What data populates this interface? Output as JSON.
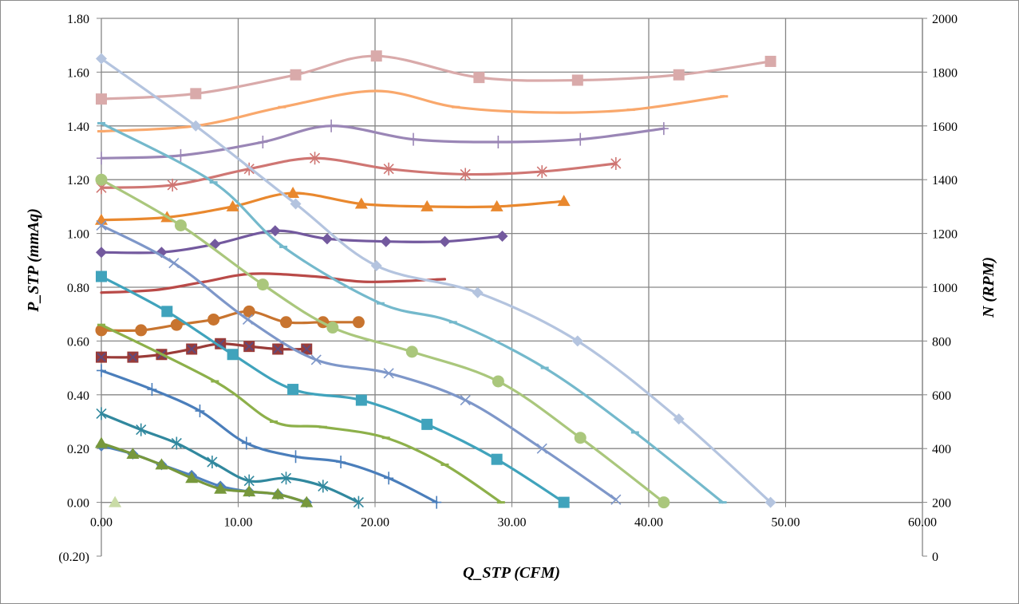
{
  "chart_data": {
    "type": "line",
    "title": "",
    "xlabel": "Q_STP (CFM)",
    "ylabel": "P_STP (mmAq)",
    "y2label": "N (RPM)",
    "xlim": [
      0,
      60
    ],
    "ylim": [
      -0.2,
      1.8
    ],
    "y2lim": [
      0,
      2000
    ],
    "grid": true,
    "legend": "none",
    "x_ticks": [
      "0.00",
      "10.00",
      "20.00",
      "30.00",
      "40.00",
      "50.00",
      "60.00"
    ],
    "y_ticks": [
      "(0.20)",
      "0.00",
      "0.20",
      "0.40",
      "0.60",
      "0.80",
      "1.00",
      "1.20",
      "1.40",
      "1.60",
      "1.80"
    ],
    "y2_ticks": [
      "0",
      "200",
      "400",
      "600",
      "800",
      "1000",
      "1200",
      "1400",
      "1600",
      "1800",
      "2000"
    ],
    "negative_tick_color": "#FF0000",
    "series": [
      {
        "color": "#D9AAAA",
        "marker": "square",
        "x": [
          0,
          6.9,
          14.2,
          20.1,
          27.6,
          34.8,
          42.2,
          48.9
        ],
        "y": [
          1.5,
          1.52,
          1.59,
          1.66,
          1.58,
          1.57,
          1.59,
          1.64
        ]
      },
      {
        "color": "#F9A86C",
        "marker": "dash",
        "x": [
          0,
          6.9,
          13.2,
          20.1,
          25.9,
          32.4,
          38.7,
          45.5
        ],
        "y": [
          1.38,
          1.4,
          1.47,
          1.53,
          1.47,
          1.45,
          1.46,
          1.51
        ]
      },
      {
        "color": "#9A86B6",
        "marker": "plus",
        "x": [
          0,
          5.8,
          11.8,
          16.8,
          22.8,
          29,
          35,
          41.1
        ],
        "y": [
          1.28,
          1.29,
          1.34,
          1.4,
          1.35,
          1.34,
          1.35,
          1.39
        ]
      },
      {
        "color": "#CF7673",
        "marker": "asterisk",
        "x": [
          0,
          5.2,
          10.8,
          15.6,
          21,
          26.6,
          32.2,
          37.6
        ],
        "y": [
          1.17,
          1.18,
          1.24,
          1.28,
          1.24,
          1.22,
          1.23,
          1.26
        ]
      },
      {
        "color": "#E9882E",
        "marker": "triangle",
        "x": [
          0,
          4.8,
          9.6,
          14,
          19,
          23.8,
          28.9,
          33.8
        ],
        "y": [
          1.05,
          1.06,
          1.1,
          1.15,
          1.11,
          1.1,
          1.1,
          1.12
        ]
      },
      {
        "color": "#73599E",
        "marker": "diamond",
        "x": [
          0,
          4.4,
          8.3,
          12.7,
          16.5,
          20.8,
          25.1,
          29.3
        ],
        "y": [
          0.93,
          0.93,
          0.96,
          1.01,
          0.98,
          0.97,
          0.97,
          0.99
        ]
      },
      {
        "color": "#B94A48",
        "marker": "none",
        "x": [
          0,
          4,
          7.5,
          11,
          15.6,
          19.4,
          25.1
        ],
        "y": [
          0.78,
          0.79,
          0.82,
          0.85,
          0.84,
          0.82,
          0.83
        ]
      },
      {
        "color": "#C8742F",
        "marker": "circle",
        "x": [
          0,
          2.9,
          5.5,
          8.2,
          10.8,
          13.5,
          16.2,
          18.8
        ],
        "y": [
          0.64,
          0.64,
          0.66,
          0.68,
          0.71,
          0.67,
          0.67,
          0.67
        ]
      },
      {
        "color": "#9A3B38",
        "marker": "square-x",
        "x": [
          0,
          2.3,
          4.4,
          6.6,
          8.7,
          10.8,
          12.9,
          15
        ],
        "y": [
          0.54,
          0.54,
          0.55,
          0.57,
          0.59,
          0.58,
          0.57,
          0.57
        ]
      },
      {
        "color": "#B4C4DF",
        "marker": "diamond",
        "x": [
          0,
          6.9,
          14.2,
          20.1,
          27.5,
          34.8,
          42.2,
          48.9
        ],
        "y": [
          1.65,
          1.4,
          1.11,
          0.88,
          0.78,
          0.6,
          0.31,
          0.0
        ]
      },
      {
        "color": "#74B9CC",
        "marker": "dash",
        "x": [
          0,
          8.2,
          13.3,
          20.4,
          25.7,
          32.4,
          39,
          45.4
        ],
        "y": [
          1.41,
          1.19,
          0.95,
          0.74,
          0.67,
          0.5,
          0.26,
          0.0
        ]
      },
      {
        "color": "#AAC77C",
        "marker": "circle",
        "x": [
          0,
          5.8,
          11.8,
          16.9,
          22.7,
          29,
          35,
          41.1
        ],
        "y": [
          1.2,
          1.03,
          0.81,
          0.65,
          0.56,
          0.45,
          0.24,
          0.0
        ]
      },
      {
        "color": "#7E97C9",
        "marker": "x",
        "x": [
          0,
          5.3,
          10.7,
          15.7,
          21,
          26.6,
          32.2,
          37.6
        ],
        "y": [
          1.03,
          0.89,
          0.68,
          0.53,
          0.48,
          0.38,
          0.2,
          0.01
        ]
      },
      {
        "color": "#40A3BC",
        "marker": "square",
        "x": [
          0,
          4.8,
          9.6,
          14,
          19,
          23.8,
          28.9,
          33.8
        ],
        "y": [
          0.84,
          0.71,
          0.55,
          0.42,
          0.38,
          0.29,
          0.16,
          0.0
        ]
      },
      {
        "color": "#8DB04A",
        "marker": "dash",
        "x": [
          0,
          8.3,
          12.6,
          16.2,
          20.8,
          25.1,
          29.2
        ],
        "y": [
          0.66,
          0.45,
          0.3,
          0.28,
          0.24,
          0.14,
          0.0
        ]
      },
      {
        "color": "#4A7EBB",
        "marker": "plus",
        "x": [
          0,
          3.7,
          7.2,
          10.6,
          14.2,
          17.5,
          21,
          24.5
        ],
        "y": [
          0.49,
          0.42,
          0.34,
          0.22,
          0.17,
          0.15,
          0.09,
          0.0
        ]
      },
      {
        "color": "#31889E",
        "marker": "asterisk",
        "x": [
          0,
          2.9,
          5.5,
          8.1,
          10.8,
          13.5,
          16.2,
          18.8
        ],
        "y": [
          0.33,
          0.27,
          0.22,
          0.15,
          0.08,
          0.09,
          0.06,
          0.0
        ]
      },
      {
        "color": "#4F81BD",
        "marker": "diamond",
        "x": [
          0,
          2.3,
          4.4,
          6.6,
          8.7,
          10.8,
          12.9,
          15
        ],
        "y": [
          0.21,
          0.18,
          0.14,
          0.1,
          0.06,
          0.04,
          0.03,
          0.0
        ]
      },
      {
        "color": "#77983C",
        "marker": "triangle",
        "x": [
          0,
          2.3,
          4.4,
          6.6,
          8.7,
          10.8,
          12.9,
          15
        ],
        "y": [
          0.22,
          0.18,
          0.14,
          0.09,
          0.05,
          0.04,
          0.03,
          0.0
        ]
      },
      {
        "color": "#C9DBA6",
        "marker": "triangle",
        "x": [
          1.0
        ],
        "y": [
          0.0
        ]
      }
    ]
  }
}
